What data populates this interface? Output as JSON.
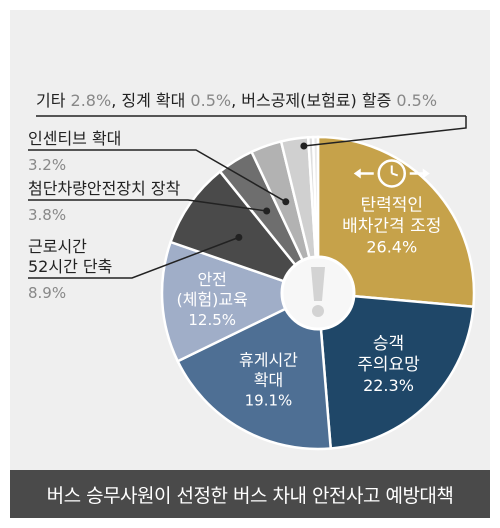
{
  "colors": {
    "background": "#efefef",
    "caption_bar": "#4a4a4a",
    "slices": [
      "#c6a24a",
      "#1f4768",
      "#4e6f94",
      "#a0aec8",
      "#4a4a4a",
      "#6e6e6e",
      "#b2b2b2",
      "#d0d0d0",
      "#dedede",
      "#e8e8e8"
    ],
    "slice_text_light": "#ffffff",
    "slice_text_dark": "#ffffff"
  },
  "center_icon": "exclamation-icon",
  "clock_icon": "clock-icon",
  "caption": "버스 승무사원이 선정한 버스 차내 안전사고 예방대책",
  "chart_data": {
    "type": "pie",
    "categories": [
      "탄력적인 배차간격 조정",
      "승객 주의요망",
      "휴게시간 확대",
      "안전 (체험)교육",
      "근로시간 52시간 단축",
      "첨단차량안전장치 장착",
      "인센티브 확대",
      "기타",
      "징계 확대",
      "버스공제(보험료) 할증"
    ],
    "values": [
      26.4,
      22.3,
      19.1,
      12.5,
      8.9,
      3.8,
      3.2,
      2.8,
      0.5,
      0.5
    ],
    "inside_labels": [
      {
        "lines": [
          "탄력적인",
          "배차간격 조정"
        ],
        "pct": "26.4%"
      },
      {
        "lines": [
          "승객",
          "주의요망"
        ],
        "pct": "22.3%"
      },
      {
        "lines": [
          "휴게시간",
          "확대"
        ],
        "pct": "19.1%"
      },
      {
        "lines": [
          "안전",
          "(체험)교육"
        ],
        "pct": "12.5%"
      }
    ],
    "callouts": [
      {
        "name_lines": [
          "근로시간",
          "52시간 단축"
        ],
        "pct": "8.9%"
      },
      {
        "name_lines": [
          "첨단차량안전장치 장착"
        ],
        "pct": "3.8%"
      },
      {
        "name_lines": [
          "인센티브 확대"
        ],
        "pct": "3.2%"
      }
    ],
    "top_line": [
      {
        "name": "기타",
        "pct": "2.8%"
      },
      {
        "name": "징계 확대",
        "pct": "0.5%"
      },
      {
        "name": "버스공제(보험료) 할증",
        "pct": "0.5%"
      }
    ],
    "top_line_separator": ", "
  }
}
